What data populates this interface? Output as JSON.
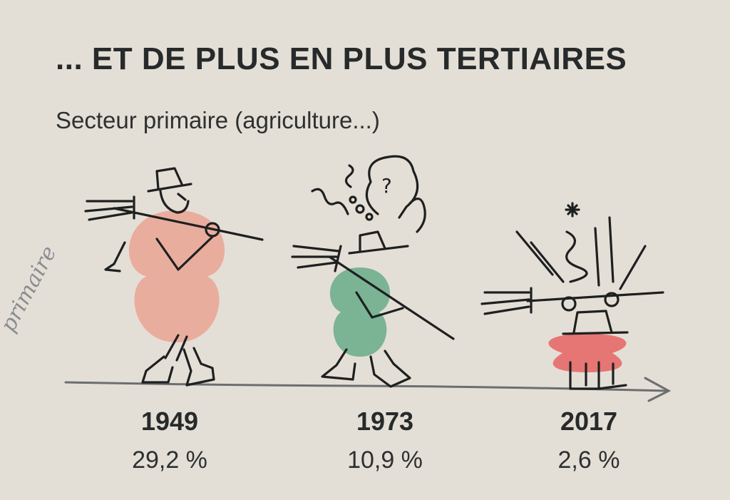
{
  "title": "... ET DE PLUS EN PLUS TERTIAIRES",
  "subtitle": "Secteur primaire (agriculture...)",
  "handwritten_note": "primaire",
  "colors": {
    "blob_1949": "#e9a798",
    "blob_1973": "#6fae8e",
    "blob_2017": "#e66a68",
    "ink": "#1e2020",
    "background": "#e4dfd6"
  },
  "chart_data": {
    "type": "bar",
    "categories": [
      "1949",
      "1973",
      "2017"
    ],
    "values": [
      29.2,
      10.9,
      2.6
    ],
    "value_labels": [
      "29,2 %",
      "10,9 %",
      "2,6 %"
    ],
    "unit": "%",
    "title": "... ET DE PLUS EN PLUS TERTIAIRES",
    "subtitle": "Secteur primaire (agriculture...)",
    "ylabel": ""
  }
}
